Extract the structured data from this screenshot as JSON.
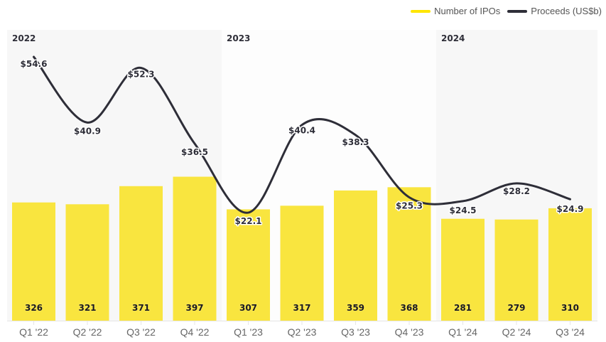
{
  "legend": {
    "items": [
      {
        "label": "Number of IPOs",
        "color": "#ffe600"
      },
      {
        "label": "Proceeds (US$b)",
        "color": "#2e2e38"
      }
    ]
  },
  "panels": [
    {
      "label": "2022",
      "color": "#f7f7f7"
    },
    {
      "label": "2023",
      "color": "#fdfdfd"
    },
    {
      "label": "2024",
      "color": "#f7f7f7"
    }
  ],
  "colors": {
    "bar": "#f9e53f",
    "line": "#2e2e38"
  },
  "chart_data": {
    "type": "bar",
    "title": "",
    "xlabel": "",
    "ylabel": "",
    "legend_position": "top-right",
    "grid": false,
    "groups": [
      "2022",
      "2023",
      "2024"
    ],
    "categories": [
      "Q1 '22",
      "Q2 '22",
      "Q3 '22",
      "Q4 '22",
      "Q1 '23",
      "Q2 '23",
      "Q3 '23",
      "Q4 '23",
      "Q1 '24",
      "Q2 '24",
      "Q3 '24"
    ],
    "series": [
      {
        "name": "Number of IPOs",
        "type": "bar",
        "values": [
          326,
          321,
          371,
          397,
          307,
          317,
          359,
          368,
          281,
          279,
          310
        ]
      },
      {
        "name": "Proceeds (US$b)",
        "type": "line",
        "values": [
          54.6,
          40.9,
          52.3,
          36.5,
          22.1,
          40.4,
          38.3,
          25.3,
          24.5,
          28.2,
          24.9
        ],
        "labels": [
          "$54.6",
          "$40.9",
          "$52.3",
          "$36.5",
          "$22.1",
          "$40.4",
          "$38.3",
          "$25.3",
          "$24.5",
          "$28.2",
          "$24.9"
        ]
      }
    ]
  }
}
